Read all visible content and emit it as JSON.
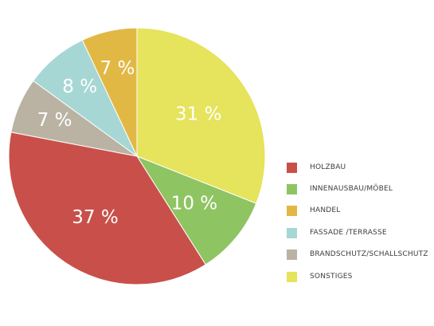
{
  "chart_data": {
    "type": "pie",
    "slices": [
      {
        "name": "SONSTIGES",
        "value": 31,
        "label": "31 %",
        "color": "#e6e35c"
      },
      {
        "name": "INNENAUSBAU/MÖBEL",
        "value": 10,
        "label": "10 %",
        "color": "#8fc462"
      },
      {
        "name": "HOLZBAU",
        "value": 37,
        "label": "37 %",
        "color": "#c9504a"
      },
      {
        "name": "BRANDSCHUTZ/SCHALLSCHUTZ",
        "value": 7,
        "label": "7 %",
        "color": "#bab3a3"
      },
      {
        "name": "FASSADE /TERRASSE",
        "value": 8,
        "label": "8 %",
        "color": "#a6d7d5"
      },
      {
        "name": "HANDEL",
        "value": 7,
        "label": "7 %",
        "color": "#e2b845"
      }
    ],
    "start_angle": "12 o'clock",
    "direction": "clockwise",
    "legend": {
      "position": "right",
      "items": [
        {
          "label": "HOLZBAU",
          "color": "#c9504a"
        },
        {
          "label": "INNENAUSBAU/MÖBEL",
          "color": "#8fc462"
        },
        {
          "label": "HANDEL",
          "color": "#e2b845"
        },
        {
          "label": "FASSADE /TERRASSE",
          "color": "#a6d7d5"
        },
        {
          "label": "BRANDSCHUTZ/SCHALLSCHUTZ",
          "color": "#bab3a3"
        },
        {
          "label": "SONSTIGES",
          "color": "#e6e35c"
        }
      ]
    }
  }
}
